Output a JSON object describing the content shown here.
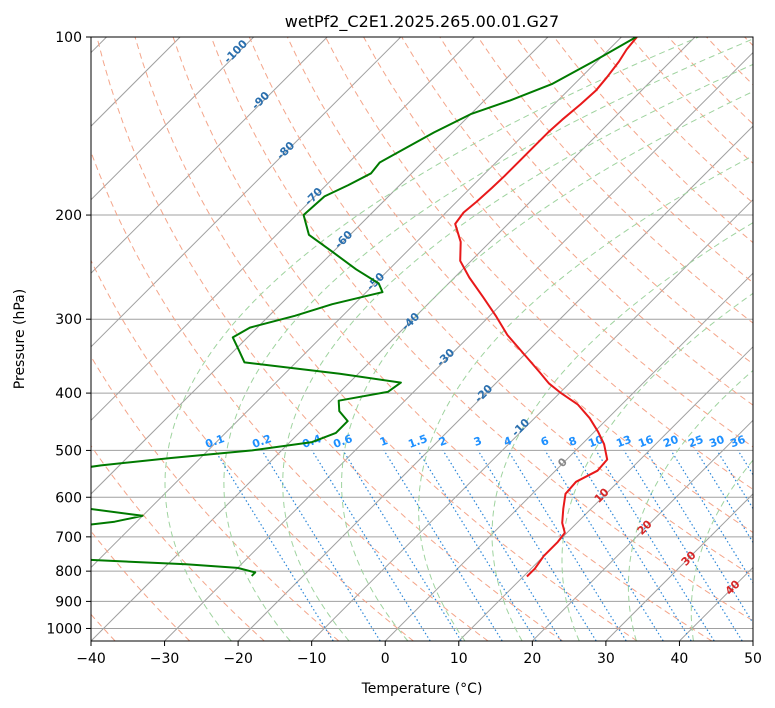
{
  "chart_data": {
    "type": "line",
    "title": "wetPf2_C2E1.2025.265.00.01.G27",
    "xlabel": "Temperature (°C)",
    "ylabel": "Pressure (hPa)",
    "xlim": [
      -40,
      50
    ],
    "ylim": [
      1050,
      100
    ],
    "y_scale": "log",
    "grid": true,
    "x_ticks": [
      -40,
      -30,
      -20,
      -10,
      0,
      10,
      20,
      30,
      40,
      50
    ],
    "y_ticks": [
      100,
      200,
      300,
      400,
      500,
      600,
      700,
      800,
      900,
      1000
    ],
    "series": [
      {
        "color": "#e8191a",
        "points": [
          [
            -47.9,
            100
          ],
          [
            -47.6,
            105
          ],
          [
            -47.0,
            110
          ],
          [
            -46.5,
            117
          ],
          [
            -46.2,
            123
          ],
          [
            -46.4,
            130
          ],
          [
            -46.8,
            138
          ],
          [
            -47.0,
            145
          ],
          [
            -47.0,
            153
          ],
          [
            -47.0,
            162
          ],
          [
            -47.0,
            172
          ],
          [
            -47.1,
            180
          ],
          [
            -47.3,
            190
          ],
          [
            -47.6,
            198
          ],
          [
            -47.2,
            207
          ],
          [
            -44.0,
            222
          ],
          [
            -41.5,
            239
          ],
          [
            -38.0,
            255
          ],
          [
            -33.5,
            275
          ],
          [
            -29.0,
            297
          ],
          [
            -25.0,
            319
          ],
          [
            -19.5,
            347
          ],
          [
            -15.5,
            369
          ],
          [
            -12.8,
            385
          ],
          [
            -9.8,
            400
          ],
          [
            -6.0,
            418
          ],
          [
            -2.5,
            441
          ],
          [
            0.5,
            465
          ],
          [
            3.0,
            488
          ],
          [
            5.5,
            518
          ],
          [
            5.7,
            541
          ],
          [
            4.3,
            565
          ],
          [
            4.5,
            592
          ],
          [
            6.2,
            627
          ],
          [
            8.0,
            663
          ],
          [
            9.7,
            689
          ],
          [
            10.0,
            714
          ],
          [
            10.0,
            754
          ],
          [
            10.5,
            792
          ],
          [
            10.5,
            817
          ]
        ]
      },
      {
        "color": "#007a00",
        "points": [
          [
            -48.0,
            100
          ],
          [
            -50.5,
            110
          ],
          [
            -53.0,
            120
          ],
          [
            -56.5,
            128
          ],
          [
            -60.0,
            135
          ],
          [
            -62.5,
            145
          ],
          [
            -64.4,
            155
          ],
          [
            -65.8,
            163
          ],
          [
            -65.5,
            170
          ],
          [
            -67.0,
            178
          ],
          [
            -68.7,
            186
          ],
          [
            -69.0,
            200
          ],
          [
            -65.6,
            216
          ],
          [
            -60.0,
            231
          ],
          [
            -54.5,
            247
          ],
          [
            -49.5,
            261
          ],
          [
            -47.8,
            270
          ],
          [
            -53.0,
            283
          ],
          [
            -56.5,
            296
          ],
          [
            -61.0,
            310
          ],
          [
            -62.0,
            322
          ],
          [
            -59.5,
            338
          ],
          [
            -57.0,
            355
          ],
          [
            -42.5,
            371
          ],
          [
            -33.0,
            384
          ],
          [
            -33.5,
            398
          ],
          [
            -39.0,
            412
          ],
          [
            -37.5,
            429
          ],
          [
            -35.0,
            446
          ],
          [
            -35.0,
            467
          ],
          [
            -37.0,
            484
          ],
          [
            -44.0,
            500
          ],
          [
            -54.0,
            515
          ],
          [
            -62.5,
            530
          ],
          [
            -68.5,
            545
          ],
          [
            -68.0,
            560
          ],
          [
            -64.0,
            575
          ],
          [
            -63.0,
            595
          ],
          [
            -64.0,
            610
          ],
          [
            -58.0,
            628
          ],
          [
            -50.0,
            645
          ],
          [
            -53.0,
            660
          ],
          [
            -60.0,
            678
          ],
          [
            -67.0,
            693
          ],
          [
            -65.0,
            707
          ],
          [
            -57.0,
            718
          ],
          [
            -54.5,
            731
          ],
          [
            -57.5,
            746
          ],
          [
            -60.0,
            755
          ],
          [
            -50.0,
            767
          ],
          [
            -37.5,
            779
          ],
          [
            -30.0,
            790
          ],
          [
            -27.0,
            804
          ],
          [
            -27.0,
            815
          ]
        ]
      }
    ],
    "dry_adiabat_labels": [
      "-100",
      "-90",
      "-80",
      "-70",
      "-60",
      "-50",
      "-40",
      "-30",
      "-20",
      "-10",
      "0",
      "10",
      "20",
      "30",
      "40"
    ],
    "mixing_ratio_labels": [
      "0.1",
      "0.2",
      "0.4",
      "0.6",
      "1",
      "1.5",
      "2",
      "3",
      "4",
      "6",
      "8",
      "10",
      "13",
      "16",
      "20",
      "25",
      "30",
      "36"
    ],
    "colors": {
      "temperature": "#e8191a",
      "dewpoint": "#007a00",
      "dry_adiabat": "#f4a58a",
      "moist_adiabat": "#9fd39f",
      "mixing_ratio": "#2b86d8",
      "isotherm": "#a0a0a0",
      "isobar": "#a0a0a0",
      "dry_label_cold": "#2a6fae",
      "dry_label_zero": "#888888",
      "dry_label_warm": "#d62728",
      "mixing_label": "#1e90ff"
    }
  }
}
